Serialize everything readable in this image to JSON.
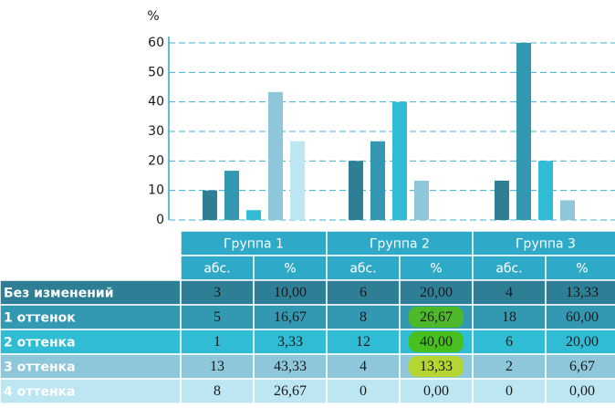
{
  "chart_data": {
    "type": "bar",
    "ylabel": "%",
    "categories": [
      "Группа 1",
      "Группа 2",
      "Группа 3"
    ],
    "columns": [
      "абс.",
      "%"
    ],
    "ylim": [
      0,
      60
    ],
    "yticks": [
      0,
      10,
      20,
      30,
      40,
      50,
      60
    ],
    "grid": true,
    "series": [
      {
        "name": "Без изменений",
        "color": "#2e7f96",
        "abs": [
          3,
          6,
          4
        ],
        "values": [
          10,
          20,
          13.33
        ],
        "value_labels": [
          "10,00",
          "20,00",
          "13,33"
        ]
      },
      {
        "name": "1 оттенок",
        "color": "#3399b3",
        "abs": [
          5,
          8,
          18
        ],
        "values": [
          16.67,
          26.67,
          60
        ],
        "value_labels": [
          "16,67",
          "26,67",
          "60,00"
        ],
        "highlight": {
          "index": 1,
          "color": "#4cb82a"
        }
      },
      {
        "name": "2 оттенка",
        "color": "#30bcd4",
        "abs": [
          1,
          12,
          6
        ],
        "values": [
          3.33,
          40,
          20
        ],
        "value_labels": [
          "3,33",
          "40,00",
          "20,00"
        ],
        "highlight": {
          "index": 1,
          "color": "#47c01f"
        }
      },
      {
        "name": "3 оттенка",
        "color": "#8ec7da",
        "abs": [
          13,
          4,
          2
        ],
        "values": [
          43.33,
          13.33,
          6.67
        ],
        "value_labels": [
          "43,33",
          "13,33",
          "6,67"
        ],
        "highlight": {
          "index": 1,
          "color": "#b4d532"
        }
      },
      {
        "name": "4 оттенка",
        "color": "#bde6f3",
        "abs": [
          8,
          0,
          0
        ],
        "values": [
          26.67,
          0,
          0
        ],
        "value_labels": [
          "26,67",
          "0,00",
          "0,00"
        ]
      }
    ]
  }
}
